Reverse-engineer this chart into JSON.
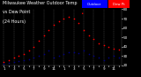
{
  "bg_color": "#000000",
  "plot_bg_color": "#000000",
  "grid_color": "#555555",
  "temp_color": "#ff0000",
  "dew_color": "#000080",
  "text_color": "#ffffff",
  "legend_blue_color": "#0000ff",
  "legend_red_color": "#ff0000",
  "ylim": [
    20,
    80
  ],
  "x_hours": [
    1,
    2,
    3,
    4,
    5,
    6,
    7,
    8,
    9,
    10,
    11,
    12,
    13,
    14,
    15,
    16,
    17,
    18,
    19,
    20,
    21,
    22,
    23,
    24
  ],
  "temp_values": [
    24,
    26,
    28,
    30,
    32,
    36,
    40,
    46,
    52,
    58,
    63,
    67,
    70,
    72,
    70,
    65,
    58,
    52,
    48,
    44,
    42,
    40,
    38,
    37
  ],
  "dew_values": [
    22,
    23,
    24,
    25,
    26,
    27,
    28,
    30,
    32,
    36,
    28,
    30,
    32,
    34,
    34,
    33,
    36,
    32,
    30,
    28,
    26,
    28,
    30,
    28
  ],
  "yticks": [
    20,
    30,
    40,
    50,
    60,
    70,
    80
  ],
  "ytick_labels": [
    "20",
    "30",
    "40",
    "50",
    "60",
    "70",
    "80"
  ],
  "xtick_labels": [
    "1",
    "",
    "3",
    "",
    "5",
    "",
    "7",
    "",
    "9",
    "",
    "11",
    "",
    "1",
    "",
    "3",
    "",
    "5",
    "",
    "7",
    "",
    "9",
    "",
    "11",
    ""
  ],
  "title_line1": "Milwaukee Weather Outdoor Temp",
  "title_line2": "vs Dew Point",
  "title_line3": "(24 Hours)",
  "legend_label1": "Outdoor",
  "legend_label2": "Dew Pt",
  "title_fontsize": 3.5,
  "tick_fontsize": 3.0,
  "marker_size": 1.2,
  "grid_linewidth": 0.3,
  "spine_linewidth": 0.3
}
